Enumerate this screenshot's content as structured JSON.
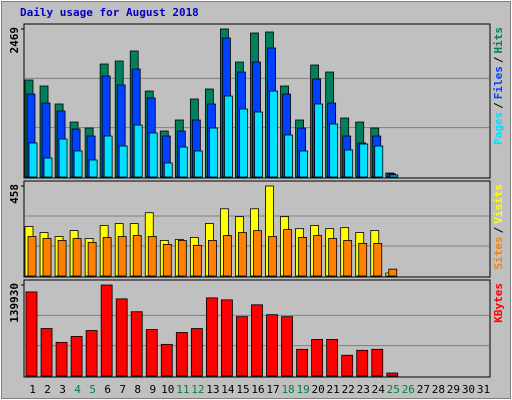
{
  "chart_data": {
    "type": "bar",
    "title": "Daily usage for August 2018",
    "categories": [
      "1",
      "2",
      "3",
      "4",
      "5",
      "6",
      "7",
      "8",
      "9",
      "10",
      "11",
      "12",
      "13",
      "14",
      "15",
      "16",
      "17",
      "18",
      "19",
      "20",
      "21",
      "22",
      "23",
      "24",
      "25",
      "26",
      "27",
      "28",
      "29",
      "30",
      "31"
    ],
    "category_colors": [
      "#000000",
      "#000000",
      "#000000",
      "#008040",
      "#008040",
      "#000000",
      "#000000",
      "#000000",
      "#000000",
      "#000000",
      "#008040",
      "#008040",
      "#000000",
      "#000000",
      "#000000",
      "#000000",
      "#000000",
      "#008040",
      "#008040",
      "#000000",
      "#000000",
      "#000000",
      "#000000",
      "#000000",
      "#008040",
      "#008040",
      "#000000",
      "#000000",
      "#000000",
      "#000000",
      "#000000"
    ],
    "legend_separator": "/",
    "panels": [
      {
        "ylim": [
          0,
          2469
        ],
        "yticks": [
          2469
        ],
        "grid_divisions": 3,
        "series": [
          {
            "name": "Hits",
            "color": "#00805c",
            "values": [
              1618,
              1518,
              1218,
              917,
              817,
              1885,
              1935,
              2102,
              1434,
              767,
              951,
              1301,
              1468,
              2469,
              1918,
              2402,
              2419,
              1518,
              951,
              1868,
              1751,
              984,
              917,
              817,
              67,
              0,
              0,
              0,
              0,
              0,
              0
            ]
          },
          {
            "name": "Files",
            "color": "#0040ff",
            "values": [
              1384,
              1234,
              1101,
              801,
              684,
              1685,
              1535,
              1801,
              1318,
              684,
              767,
              951,
              1218,
              2319,
              1751,
              1918,
              2152,
              1384,
              817,
              1635,
              1234,
              684,
              567,
              684,
              50,
              0,
              0,
              0,
              0,
              0,
              0
            ]
          },
          {
            "name": "Pages",
            "color": "#00e0ff",
            "values": [
              567,
              317,
              634,
              434,
              284,
              684,
              517,
              867,
              734,
              234,
              500,
              434,
              817,
              1351,
              1134,
              1084,
              1434,
              701,
              434,
              1218,
              884,
              450,
              550,
              517,
              33,
              0,
              0,
              0,
              0,
              0,
              0
            ]
          }
        ]
      },
      {
        "ylim": [
          0,
          458
        ],
        "yticks": [
          458
        ],
        "grid_divisions": 3,
        "series": [
          {
            "name": "Visits",
            "color": "#ffff00",
            "values": [
              252,
              221,
              201,
              231,
              191,
              257,
              267,
              267,
              322,
              181,
              186,
              196,
              267,
              342,
              302,
              342,
              458,
              302,
              241,
              257,
              241,
              246,
              221,
              231,
              15,
              0,
              0,
              0,
              0,
              0,
              0
            ]
          },
          {
            "name": "Sites",
            "color": "#ff8000",
            "values": [
              201,
              191,
              181,
              191,
              171,
              196,
              201,
              206,
              201,
              161,
              181,
              156,
              181,
              206,
              221,
              231,
              201,
              236,
              196,
              206,
              191,
              181,
              166,
              166,
              35,
              0,
              0,
              0,
              0,
              0,
              0
            ]
          }
        ]
      },
      {
        "ylim": [
          0,
          139930
        ],
        "yticks": [
          139930
        ],
        "grid_divisions": 3,
        "series": [
          {
            "name": "KBytes",
            "color": "#ff0000",
            "values": [
              129285,
              73008,
              51714,
              60840,
              69966,
              139930,
              118638,
              98865,
              71487,
              48672,
              66924,
              73008,
              120159,
              117117,
              91260,
              109512,
              94302,
              91260,
              41067,
              56277,
              56277,
              31941,
              39546,
              41067,
              4563,
              0,
              0,
              0,
              0,
              0,
              0
            ]
          }
        ]
      }
    ]
  }
}
